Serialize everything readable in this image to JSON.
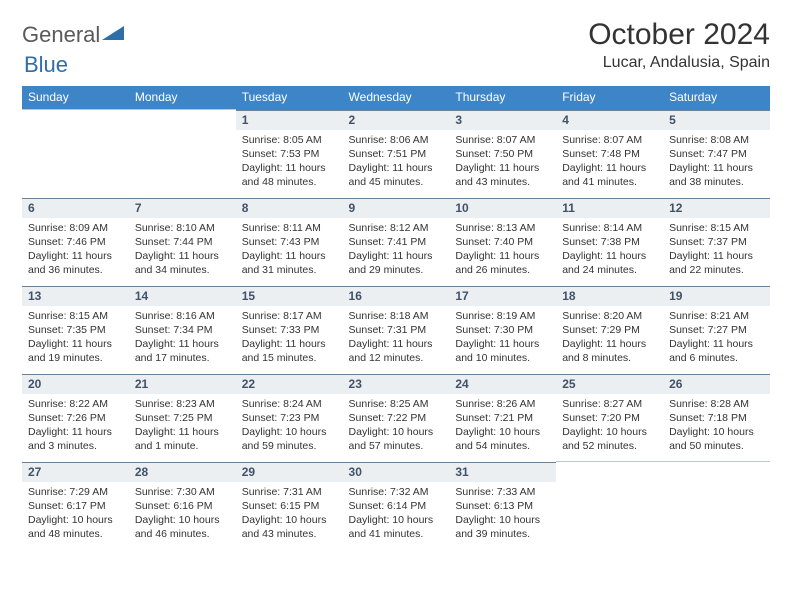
{
  "brand": {
    "part1": "General",
    "part2": "Blue"
  },
  "title": "October 2024",
  "location": "Lucar, Andalusia, Spain",
  "colors": {
    "header_bg": "#3d85c6",
    "header_text": "#ffffff",
    "daynum_bg": "#eceff2",
    "daynum_text": "#415268",
    "border": "#6b8299",
    "logo_accent": "#2f6fa7"
  },
  "weekday_labels": [
    "Sunday",
    "Monday",
    "Tuesday",
    "Wednesday",
    "Thursday",
    "Friday",
    "Saturday"
  ],
  "first_weekday_index": 2,
  "days": [
    {
      "n": 1,
      "sunrise": "8:05 AM",
      "sunset": "7:53 PM",
      "daylight": "11 hours and 48 minutes."
    },
    {
      "n": 2,
      "sunrise": "8:06 AM",
      "sunset": "7:51 PM",
      "daylight": "11 hours and 45 minutes."
    },
    {
      "n": 3,
      "sunrise": "8:07 AM",
      "sunset": "7:50 PM",
      "daylight": "11 hours and 43 minutes."
    },
    {
      "n": 4,
      "sunrise": "8:07 AM",
      "sunset": "7:48 PM",
      "daylight": "11 hours and 41 minutes."
    },
    {
      "n": 5,
      "sunrise": "8:08 AM",
      "sunset": "7:47 PM",
      "daylight": "11 hours and 38 minutes."
    },
    {
      "n": 6,
      "sunrise": "8:09 AM",
      "sunset": "7:46 PM",
      "daylight": "11 hours and 36 minutes."
    },
    {
      "n": 7,
      "sunrise": "8:10 AM",
      "sunset": "7:44 PM",
      "daylight": "11 hours and 34 minutes."
    },
    {
      "n": 8,
      "sunrise": "8:11 AM",
      "sunset": "7:43 PM",
      "daylight": "11 hours and 31 minutes."
    },
    {
      "n": 9,
      "sunrise": "8:12 AM",
      "sunset": "7:41 PM",
      "daylight": "11 hours and 29 minutes."
    },
    {
      "n": 10,
      "sunrise": "8:13 AM",
      "sunset": "7:40 PM",
      "daylight": "11 hours and 26 minutes."
    },
    {
      "n": 11,
      "sunrise": "8:14 AM",
      "sunset": "7:38 PM",
      "daylight": "11 hours and 24 minutes."
    },
    {
      "n": 12,
      "sunrise": "8:15 AM",
      "sunset": "7:37 PM",
      "daylight": "11 hours and 22 minutes."
    },
    {
      "n": 13,
      "sunrise": "8:15 AM",
      "sunset": "7:35 PM",
      "daylight": "11 hours and 19 minutes."
    },
    {
      "n": 14,
      "sunrise": "8:16 AM",
      "sunset": "7:34 PM",
      "daylight": "11 hours and 17 minutes."
    },
    {
      "n": 15,
      "sunrise": "8:17 AM",
      "sunset": "7:33 PM",
      "daylight": "11 hours and 15 minutes."
    },
    {
      "n": 16,
      "sunrise": "8:18 AM",
      "sunset": "7:31 PM",
      "daylight": "11 hours and 12 minutes."
    },
    {
      "n": 17,
      "sunrise": "8:19 AM",
      "sunset": "7:30 PM",
      "daylight": "11 hours and 10 minutes."
    },
    {
      "n": 18,
      "sunrise": "8:20 AM",
      "sunset": "7:29 PM",
      "daylight": "11 hours and 8 minutes."
    },
    {
      "n": 19,
      "sunrise": "8:21 AM",
      "sunset": "7:27 PM",
      "daylight": "11 hours and 6 minutes."
    },
    {
      "n": 20,
      "sunrise": "8:22 AM",
      "sunset": "7:26 PM",
      "daylight": "11 hours and 3 minutes."
    },
    {
      "n": 21,
      "sunrise": "8:23 AM",
      "sunset": "7:25 PM",
      "daylight": "11 hours and 1 minute."
    },
    {
      "n": 22,
      "sunrise": "8:24 AM",
      "sunset": "7:23 PM",
      "daylight": "10 hours and 59 minutes."
    },
    {
      "n": 23,
      "sunrise": "8:25 AM",
      "sunset": "7:22 PM",
      "daylight": "10 hours and 57 minutes."
    },
    {
      "n": 24,
      "sunrise": "8:26 AM",
      "sunset": "7:21 PM",
      "daylight": "10 hours and 54 minutes."
    },
    {
      "n": 25,
      "sunrise": "8:27 AM",
      "sunset": "7:20 PM",
      "daylight": "10 hours and 52 minutes."
    },
    {
      "n": 26,
      "sunrise": "8:28 AM",
      "sunset": "7:18 PM",
      "daylight": "10 hours and 50 minutes."
    },
    {
      "n": 27,
      "sunrise": "7:29 AM",
      "sunset": "6:17 PM",
      "daylight": "10 hours and 48 minutes."
    },
    {
      "n": 28,
      "sunrise": "7:30 AM",
      "sunset": "6:16 PM",
      "daylight": "10 hours and 46 minutes."
    },
    {
      "n": 29,
      "sunrise": "7:31 AM",
      "sunset": "6:15 PM",
      "daylight": "10 hours and 43 minutes."
    },
    {
      "n": 30,
      "sunrise": "7:32 AM",
      "sunset": "6:14 PM",
      "daylight": "10 hours and 41 minutes."
    },
    {
      "n": 31,
      "sunrise": "7:33 AM",
      "sunset": "6:13 PM",
      "daylight": "10 hours and 39 minutes."
    }
  ],
  "labels": {
    "sunrise": "Sunrise:",
    "sunset": "Sunset:",
    "daylight": "Daylight:"
  }
}
